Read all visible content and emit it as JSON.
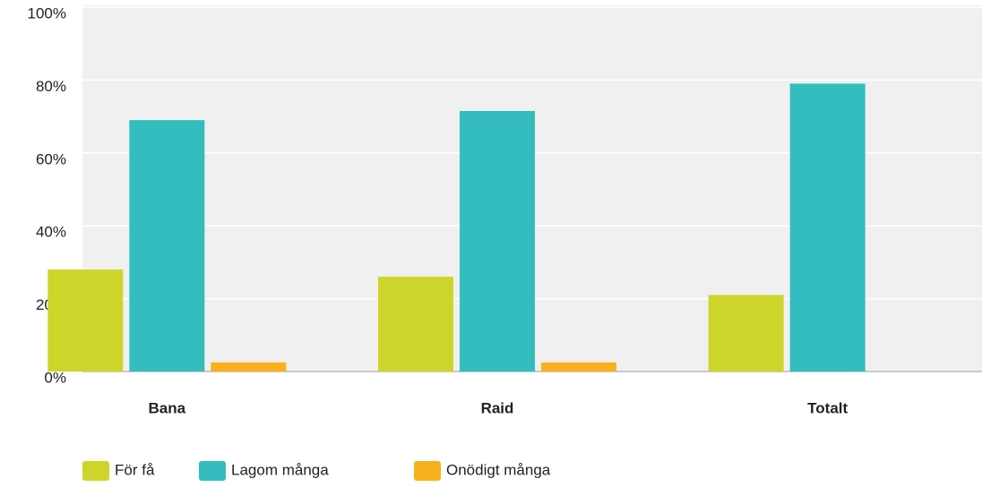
{
  "chart_data": {
    "type": "bar",
    "categories": [
      "Bana",
      "Raid",
      "Totalt"
    ],
    "series": [
      {
        "name": "För få",
        "color": "#cdd52a",
        "values": [
          28,
          26,
          21
        ]
      },
      {
        "name": "Lagom många",
        "color": "#33bdbf",
        "values": [
          69,
          71.5,
          79
        ]
      },
      {
        "name": "Onödigt många",
        "color": "#f8b11c",
        "values": [
          2.5,
          2.5,
          0
        ]
      }
    ],
    "ylim": [
      0,
      100
    ],
    "yticks": [
      {
        "value": 0,
        "label": "0%"
      },
      {
        "value": 20,
        "label": "20%"
      },
      {
        "value": 40,
        "label": "40%"
      },
      {
        "value": 60,
        "label": "60%"
      },
      {
        "value": 80,
        "label": "80%"
      },
      {
        "value": 100,
        "label": "100%"
      }
    ],
    "grid": true,
    "legend": "bottom"
  }
}
